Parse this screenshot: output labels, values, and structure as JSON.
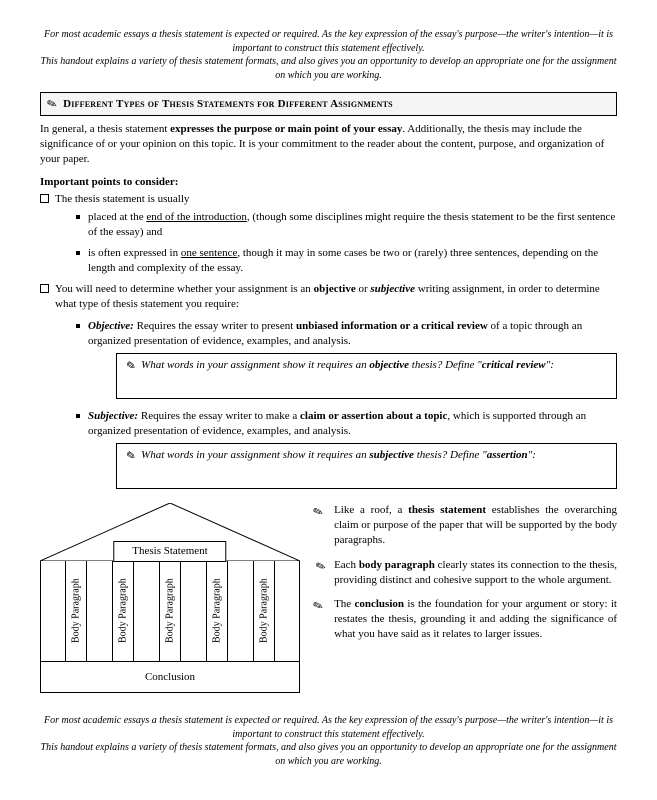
{
  "intro": {
    "line1": "For most academic essays a thesis statement is expected or required. As the key expression of the essay's purpose—the writer's intention—it is important to construct this statement effectively.",
    "line2": "This handout explains a variety of thesis statement formats, and also gives you an opportunity to develop an appropriate one for the assignment on which you are working."
  },
  "section_title": "Different Types of Thesis Statements for Different Assignments",
  "para1": {
    "pre": "In general, a thesis statement ",
    "bold1": "expresses the purpose or main point of your essay",
    "post": ". Additionally, the thesis may include the significance of or your opinion on this topic. It is your commitment to the reader about the content, purpose, and organization of your paper."
  },
  "important_label": "Important points to consider:",
  "cb1_text": "The thesis statement is usually",
  "sub1a": {
    "pre": "placed at the ",
    "under": "end of the introduction",
    "post": ", (though some disciplines might require the thesis statement to be the first sentence of the essay) and"
  },
  "sub1b": {
    "pre": "is often expressed in ",
    "under": "one sentence",
    "post": ", though it may in some cases be two or (rarely) three sentences, depending on the length and complexity of the essay."
  },
  "cb2": {
    "pre": "You will need to determine whether your assignment is an ",
    "b1": "objective",
    "mid": " or ",
    "b2": "subjective",
    "post": " writing assignment, in order to determine what type of thesis statement you require:"
  },
  "obj": {
    "label": "Objective:",
    "pre": "  Requires the essay writer to present ",
    "bold": "unbiased information or a critical review",
    "post": " of a topic through an organized presentation of evidence, examples, and analysis."
  },
  "obj_prompt": {
    "pre": "What words in your assignment show  it requires an ",
    "b1": "objective",
    "mid": " thesis? Define \"",
    "b2": "critical review",
    "post": "\":"
  },
  "subj": {
    "label": "Subjective:",
    "pre": " Requires the essay writer to make a ",
    "bold": "claim or assertion about a topic",
    "post": ", which is supported through an organized presentation of evidence, examples, and analysis."
  },
  "subj_prompt": {
    "pre": "What words in your assignment show it requires an ",
    "b1": "subjective",
    "mid": " thesis? Define \"",
    "b2": "assertion",
    "post": "\":"
  },
  "diagram": {
    "roof_label": "Thesis Statement",
    "pillar_label": "Body Paragraph",
    "foundation_label": "Conclusion",
    "pillar_count": 5
  },
  "right": {
    "p1": {
      "pre": "Like a roof, a ",
      "b": "thesis statement",
      "post": " establishes the overarching claim or purpose of the paper that will be supported by the body paragraphs."
    },
    "p2": {
      "pre": "Each ",
      "b": "body paragraph",
      "post": " clearly states its connection to the thesis, providing distinct and cohesive support to the whole argument."
    },
    "p3": {
      "pre": "The ",
      "b": "conclusion",
      "post": " is the foundation for your argument or story: it restates the thesis, grounding it and adding the significance of what you have said as it relates to larger issues."
    }
  },
  "outro": {
    "line1": "For most academic essays a thesis statement is expected or required. As the key expression of the essay's purpose—the writer's intention—it is important to construct this statement effectively.",
    "line2": "This handout explains a variety of thesis statement formats, and also gives you an opportunity to develop an appropriate one for the assignment on which you are working."
  },
  "colors": {
    "border": "#000000",
    "header_bg": "#f5f5f5"
  }
}
